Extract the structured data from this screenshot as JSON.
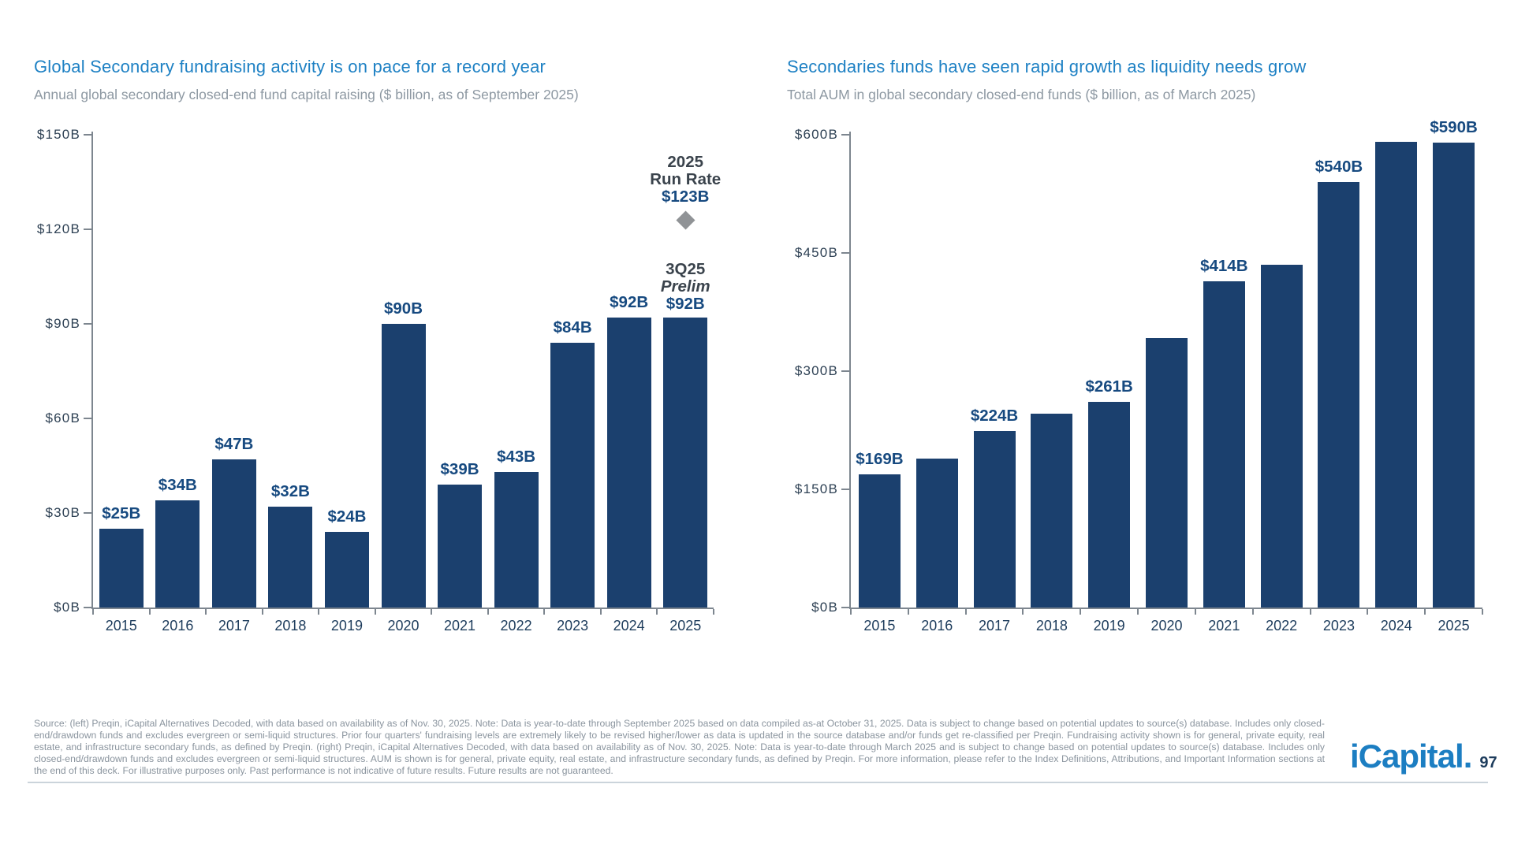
{
  "chart_data": [
    {
      "type": "bar",
      "title": "Global Secondary fundraising activity is on pace for a record year",
      "subtitle": "Annual global secondary closed-end fund capital raising ($ billion, as of September 2025)",
      "categories": [
        "2015",
        "2016",
        "2017",
        "2018",
        "2019",
        "2020",
        "2021",
        "2022",
        "2023",
        "2024",
        "2025"
      ],
      "values": [
        25,
        34,
        47,
        32,
        24,
        90,
        39,
        43,
        84,
        92,
        92
      ],
      "bar_labels": [
        "$25B",
        "$34B",
        "$47B",
        "$32B",
        "$24B",
        "$90B",
        "$39B",
        "$43B",
        "$84B",
        "$92B",
        ""
      ],
      "ylim": [
        0,
        150
      ],
      "y_tick_labels": [
        "$0B",
        "$30B",
        "$60B",
        "$90B",
        "$120B",
        "$150B"
      ],
      "grid": false,
      "legend": null,
      "bar_color": "#1B406E",
      "annotations": {
        "run_rate": {
          "lines": [
            "2025",
            "Run Rate"
          ],
          "value_label": "$123B",
          "value": 123,
          "marker": "diamond",
          "marker_color": "#909396"
        },
        "prelim": {
          "category": "2025",
          "lines": [
            "3Q25",
            "Prelim"
          ],
          "value_label": "$92B",
          "value": 92
        }
      }
    },
    {
      "type": "bar",
      "title": "Secondaries funds have seen rapid growth as liquidity needs grow",
      "subtitle": "Total AUM in global secondary closed-end funds ($ billion, as of March 2025)",
      "categories": [
        "2015",
        "2016",
        "2017",
        "2018",
        "2019",
        "2020",
        "2021",
        "2022",
        "2023",
        "2024",
        "2025"
      ],
      "values": [
        169,
        189,
        224,
        246,
        261,
        342,
        414,
        435,
        540,
        591,
        590
      ],
      "bar_labels": [
        "$169B",
        "",
        "$224B",
        "",
        "$261B",
        "",
        "$414B",
        "",
        "$540B",
        "",
        "$590B"
      ],
      "ylim": [
        0,
        600
      ],
      "y_tick_labels": [
        "$0B",
        "$150B",
        "$300B",
        "$450B",
        "$600B"
      ],
      "grid": false,
      "legend": null,
      "bar_color": "#1B406E"
    }
  ],
  "footer": {
    "disclosure": "Source: (left) Preqin, iCapital Alternatives Decoded, with data based on availability as of Nov. 30, 2025. Note: Data is year-to-date through September 2025 based on data compiled as-at October 31, 2025. Data is subject to change based on potential updates to source(s) database. Includes only closed-end/drawdown funds and excludes evergreen or semi-liquid structures. Prior four quarters' fundraising levels are extremely likely to be revised higher/lower as data is updated in the source database and/or funds get re-classified per Preqin. Fundraising activity shown is for general, private equity, real estate, and infrastructure secondary funds, as defined by Preqin. (right) Preqin, iCapital Alternatives Decoded, with data based on availability as of Nov. 30, 2025. Note: Data is year-to-date through March 2025 and is subject to change based on potential updates to source(s) database. Includes only closed-end/drawdown funds and excludes evergreen or semi-liquid structures. AUM is shown is for general, private equity, real estate, and infrastructure secondary funds, as defined by Preqin. For more information, please refer to the Index Definitions, Attributions, and Important Information sections at the end of this deck. For illustrative purposes only. Past performance is not indicative of future results. Future results are not guaranteed.",
    "brand": "iCapital",
    "brand_mark": ".",
    "page": "97"
  },
  "colors": {
    "title_blue": "#1E81C4",
    "subtitle_gray": "#8D98A2",
    "bar_navy": "#1B406E",
    "value_label_blue": "#174A80",
    "annotation_dark": "#3A434C",
    "axis_gray": "#7D868F",
    "diamond_gray": "#909396",
    "footer_gray": "#8A949E",
    "logo_blue": "#1C7EC2",
    "page_background": "#FFFFFF"
  }
}
